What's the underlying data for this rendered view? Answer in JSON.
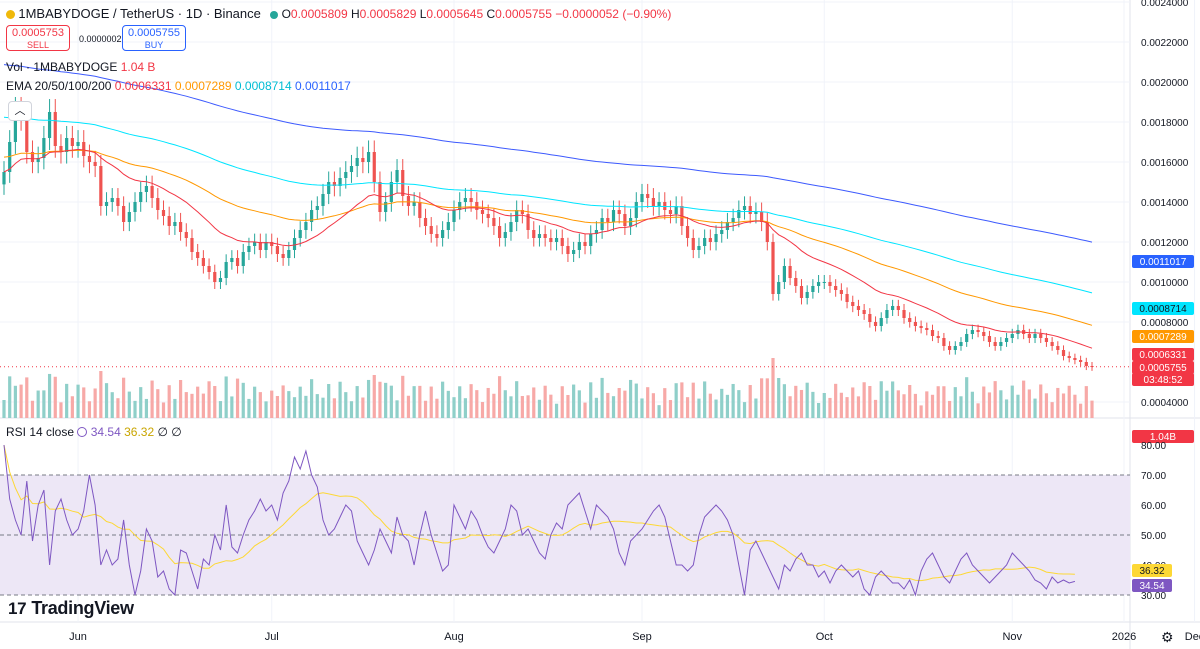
{
  "header": {
    "symbol": "1MBABYDOGE / TetherUS · 1D · Binance",
    "open_label": "O",
    "open": "0.0005809",
    "high_label": "H",
    "high": "0.0005829",
    "low_label": "L",
    "low": "0.0005645",
    "close_label": "C",
    "close": "0.0005755",
    "change": "−0.0000052 (−0.90%)"
  },
  "trade": {
    "sell_price": "0.0005753",
    "sell_label": "SELL",
    "spread": "0.0000002",
    "buy_price": "0.0005755",
    "buy_label": "BUY"
  },
  "indicators": {
    "vol_label": "Vol · 1MBABYDOGE",
    "vol_value": "1.04 B",
    "ema_label": "EMA 20/50/100/200",
    "ema20": "0.0006331",
    "ema50": "0.0007289",
    "ema100": "0.0008714",
    "ema200": "0.0011017",
    "rsi_label": "RSI 14 close",
    "rsi_value": "34.54",
    "rsi_ma": "36.32",
    "rsi_extra": "∅ ∅"
  },
  "price_axis": {
    "ticks": [
      "0.0024000",
      "0.0022000",
      "0.0020000",
      "0.0018000",
      "0.0016000",
      "0.0014000",
      "0.0012000",
      "0.0010000",
      "0.0008000",
      "0.0004000"
    ],
    "badges": [
      {
        "text": "0.0011017",
        "color": "#2962ff",
        "fg": "#ffffff"
      },
      {
        "text": "0.0008714",
        "color": "#00e5ff",
        "fg": "#131722"
      },
      {
        "text": "0.0007289",
        "color": "#ff9800",
        "fg": "#ffffff"
      },
      {
        "text": "0.0006331",
        "color": "#f23645",
        "fg": "#ffffff"
      },
      {
        "text": "0.0005755",
        "color": "#f23645",
        "fg": "#ffffff"
      },
      {
        "text": "03:48:52",
        "color": "#f23645",
        "fg": "#ffffff"
      },
      {
        "text": "1.04B",
        "color": "#f23645",
        "fg": "#ffffff"
      }
    ]
  },
  "rsi_axis": {
    "ticks": [
      "80.00",
      "70.00",
      "60.00",
      "50.00",
      "40.00",
      "30.00"
    ],
    "badges": [
      {
        "text": "36.32",
        "color": "#fdd835",
        "fg": "#131722"
      },
      {
        "text": "34.54",
        "color": "#7e57c2",
        "fg": "#ffffff"
      }
    ]
  },
  "time_axis": {
    "ticks": [
      "Jun",
      "Jul",
      "Aug",
      "Sep",
      "Oct",
      "Nov",
      "Dec",
      "2026"
    ]
  },
  "colors": {
    "up": "#26a69a",
    "down": "#ef5350",
    "ema20": "#f23645",
    "ema50": "#ff9800",
    "ema100": "#00e5ff",
    "ema200": "#3d5afe",
    "rsi": "#7e57c2",
    "rsi_ma": "#fdd835",
    "rsi_band": "#ede7f6"
  },
  "icons": [
    "chevron-up-icon",
    "tradingview-logo-icon",
    "settings-icon",
    "status-dot-icon"
  ],
  "brand": "TradingView",
  "chart_data": {
    "type": "candlestick",
    "title": "1MBABYDOGE / TetherUS · 1D · Binance",
    "ylim": [
      0.0004,
      0.0024
    ],
    "x_ticks": [
      "Jun",
      "Jul",
      "Aug",
      "Sep",
      "Oct",
      "Nov",
      "Dec",
      "2026"
    ],
    "close": [
      0.00155,
      0.0017,
      0.00186,
      0.00182,
      0.00165,
      0.0016,
      0.00162,
      0.00172,
      0.00185,
      0.00168,
      0.00165,
      0.00172,
      0.00168,
      0.0017,
      0.00163,
      0.0016,
      0.00158,
      0.00138,
      0.0014,
      0.00142,
      0.00138,
      0.0013,
      0.00135,
      0.0014,
      0.00145,
      0.00148,
      0.00142,
      0.00136,
      0.00133,
      0.00128,
      0.0013,
      0.00125,
      0.00122,
      0.00115,
      0.00112,
      0.00108,
      0.00105,
      0.001,
      0.00102,
      0.0011,
      0.00112,
      0.00108,
      0.00115,
      0.00118,
      0.0012,
      0.00116,
      0.0012,
      0.00118,
      0.00114,
      0.00112,
      0.00116,
      0.00122,
      0.00126,
      0.0013,
      0.00136,
      0.00138,
      0.00144,
      0.0015,
      0.00148,
      0.00152,
      0.00155,
      0.00158,
      0.00162,
      0.0016,
      0.00165,
      0.0015,
      0.00135,
      0.0014,
      0.0015,
      0.00156,
      0.00143,
      0.00138,
      0.0014,
      0.00132,
      0.00128,
      0.00124,
      0.00122,
      0.00126,
      0.0013,
      0.00136,
      0.0014,
      0.00142,
      0.0014,
      0.00136,
      0.00134,
      0.00132,
      0.00128,
      0.00122,
      0.00125,
      0.0013,
      0.00136,
      0.00134,
      0.00126,
      0.00122,
      0.00124,
      0.00122,
      0.0012,
      0.00122,
      0.00118,
      0.00114,
      0.00116,
      0.0012,
      0.00118,
      0.00124,
      0.00126,
      0.00132,
      0.0013,
      0.00136,
      0.00134,
      0.00128,
      0.00132,
      0.0014,
      0.00144,
      0.00142,
      0.00138,
      0.0014,
      0.00136,
      0.00134,
      0.00138,
      0.00128,
      0.00122,
      0.00116,
      0.00118,
      0.00122,
      0.0012,
      0.00124,
      0.00126,
      0.0013,
      0.00132,
      0.00136,
      0.00138,
      0.00134,
      0.00135,
      0.0013,
      0.0012,
      0.00094,
      0.001,
      0.00108,
      0.00102,
      0.00098,
      0.00092,
      0.00095,
      0.00098,
      0.001,
      0.001,
      0.00098,
      0.00096,
      0.00094,
      0.0009,
      0.00088,
      0.00086,
      0.00084,
      0.0008,
      0.00078,
      0.00082,
      0.00086,
      0.00088,
      0.00086,
      0.00082,
      0.0008,
      0.00078,
      0.00077,
      0.00076,
      0.00073,
      0.00072,
      0.00068,
      0.00066,
      0.00068,
      0.0007,
      0.00074,
      0.00076,
      0.00075,
      0.00073,
      0.0007,
      0.00068,
      0.0007,
      0.00072,
      0.00074,
      0.00076,
      0.00074,
      0.00072,
      0.00074,
      0.00072,
      0.0007,
      0.00068,
      0.00066,
      0.00063,
      0.00062,
      0.00061,
      0.0006,
      0.00058,
      0.000576
    ],
    "rsi": [
      80,
      62,
      55,
      50,
      68,
      48,
      60,
      65,
      40,
      58,
      62,
      55,
      50,
      52,
      58,
      70,
      60,
      40,
      45,
      40,
      42,
      55,
      40,
      30,
      38,
      52,
      48,
      36,
      38,
      32,
      30,
      45,
      44,
      38,
      32,
      42,
      40,
      50,
      45,
      60,
      46,
      44,
      50,
      55,
      58,
      62,
      58,
      60,
      55,
      64,
      68,
      76,
      72,
      78,
      70,
      66,
      55,
      50,
      52,
      56,
      60,
      58,
      48,
      44,
      40,
      45,
      52,
      48,
      44,
      56,
      50,
      48,
      40,
      50,
      58,
      50,
      44,
      38,
      40,
      60,
      56,
      52,
      58,
      55,
      50,
      46,
      44,
      48,
      52,
      60,
      58,
      50,
      52,
      48,
      44,
      42,
      50,
      54,
      52,
      60,
      62,
      64,
      58,
      52,
      60,
      58,
      56,
      52,
      44,
      40,
      48,
      50,
      52,
      55,
      58,
      60,
      56,
      48,
      40,
      40,
      38,
      40,
      50,
      56,
      58,
      60,
      58,
      55,
      50,
      40,
      30,
      45,
      48,
      44,
      40,
      36,
      32,
      40,
      38,
      42,
      44,
      40,
      40,
      36,
      38,
      34,
      38,
      40,
      38,
      36,
      38,
      32,
      30,
      36,
      38,
      36,
      34,
      34,
      32,
      35,
      30,
      38,
      42,
      44,
      40,
      36,
      34,
      38,
      42,
      44,
      40,
      38,
      36,
      34,
      36,
      38,
      40,
      44,
      42,
      40,
      38,
      35,
      34,
      32,
      36,
      34,
      35,
      34,
      34.54
    ],
    "rsi_ylim": [
      25,
      85
    ],
    "series": [
      {
        "name": "EMA 20",
        "values_last": 0.0006331
      },
      {
        "name": "EMA 50",
        "values_last": 0.0007289
      },
      {
        "name": "EMA 100",
        "values_last": 0.0008714
      },
      {
        "name": "EMA 200",
        "values_last": 0.0011017
      }
    ]
  }
}
